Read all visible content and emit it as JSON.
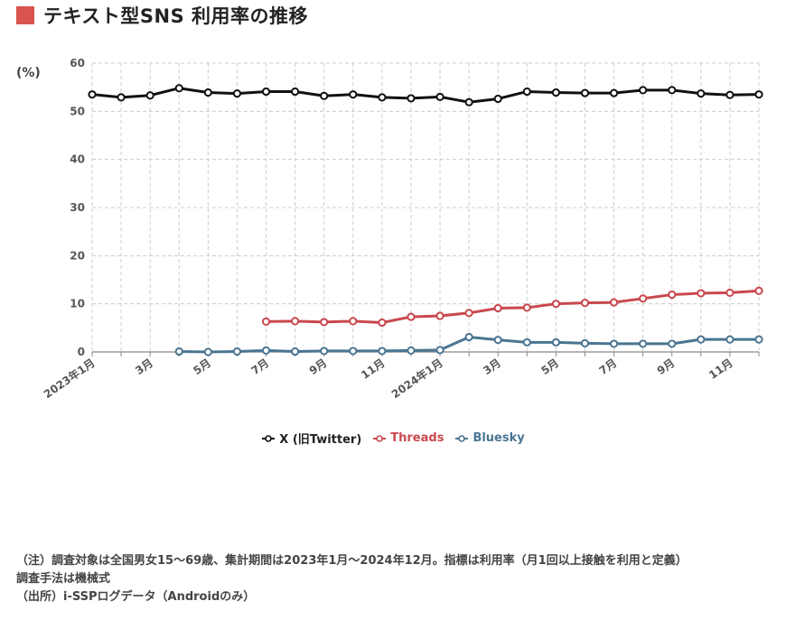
{
  "title": "テキスト型SNS 利用率の推移",
  "colors": {
    "title_marker": "#d9534f",
    "x": "#111111",
    "threads": "#c9484f",
    "bluesky": "#4a7592",
    "grid": "#cccccc"
  },
  "notes": [
    "（注）調査対象は全国男女15〜69歳、集計期間は2023年1月〜2024年12月。指標は利用率（月1回以上接触を利用と定義）",
    "調査手法は機械式",
    "（出所）i-SSPログデータ（Androidのみ）"
  ],
  "chart_data": {
    "type": "line",
    "title": "テキスト型SNS 利用率の推移",
    "ylabel": "(%)",
    "xlabel": "",
    "ylim": [
      0,
      60
    ],
    "yticks": [
      0,
      10,
      20,
      30,
      40,
      50,
      60
    ],
    "grid": true,
    "legend": "bottom-center",
    "x": [
      "2023年1月",
      "2023年2月",
      "3月",
      "2023年4月",
      "5月",
      "2023年6月",
      "7月",
      "2023年8月",
      "9月",
      "2023年10月",
      "11月",
      "2023年12月",
      "2024年1月",
      "2024年2月",
      "3月",
      "2024年4月",
      "5月",
      "2024年6月",
      "7月",
      "2024年8月",
      "9月",
      "2024年10月",
      "11月",
      "2024年12月"
    ],
    "tick_labels": [
      "2023年1月",
      "",
      "3月",
      "",
      "5月",
      "",
      "7月",
      "",
      "9月",
      "",
      "11月",
      "",
      "2024年1月",
      "",
      "3月",
      "",
      "5月",
      "",
      "7月",
      "",
      "9月",
      "",
      "11月",
      ""
    ],
    "series": [
      {
        "name": "X (旧Twitter)",
        "color": "#111111",
        "values": [
          53.5,
          52.9,
          53.3,
          54.8,
          53.9,
          53.7,
          54.1,
          54.1,
          53.2,
          53.5,
          52.9,
          52.7,
          53.0,
          51.9,
          52.6,
          54.1,
          53.9,
          53.8,
          53.8,
          54.4,
          54.4,
          53.7,
          53.4,
          53.5
        ]
      },
      {
        "name": "Threads",
        "color": "#c9484f",
        "values": [
          null,
          null,
          null,
          null,
          null,
          null,
          6.3,
          6.4,
          6.2,
          6.4,
          6.1,
          7.3,
          7.5,
          8.1,
          9.1,
          9.2,
          10.0,
          10.2,
          10.3,
          11.1,
          11.9,
          12.2,
          12.3,
          12.7
        ]
      },
      {
        "name": "Bluesky",
        "color": "#4a7592",
        "values": [
          null,
          null,
          null,
          0.1,
          0.0,
          0.1,
          0.3,
          0.1,
          0.2,
          0.2,
          0.2,
          0.3,
          0.4,
          3.1,
          2.5,
          2.0,
          2.0,
          1.8,
          1.7,
          1.7,
          1.7,
          2.6,
          2.6,
          2.6
        ]
      }
    ]
  }
}
